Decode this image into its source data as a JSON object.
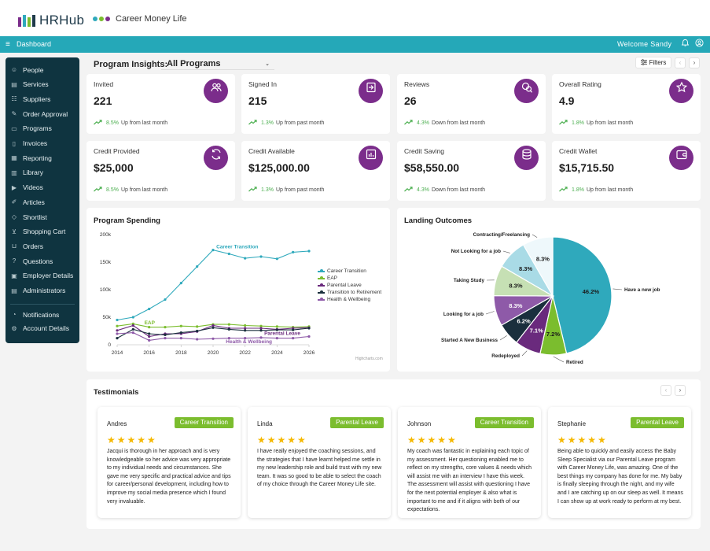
{
  "app": {
    "logo_text": "HRHub",
    "brand_text": "Career Money Life",
    "nav_title": "Dashboard",
    "welcome": "Welcome Sandy"
  },
  "sidebar": {
    "items": [
      {
        "label": "People",
        "icon": "people-icon"
      },
      {
        "label": "Services",
        "icon": "services-icon"
      },
      {
        "label": "Suppliers",
        "icon": "suppliers-icon"
      },
      {
        "label": "Order Approval",
        "icon": "order-approval-icon"
      },
      {
        "label": "Programs",
        "icon": "programs-icon"
      },
      {
        "label": "Invoices",
        "icon": "invoices-icon"
      },
      {
        "label": "Reporting",
        "icon": "reporting-icon"
      },
      {
        "label": "Library",
        "icon": "library-icon"
      },
      {
        "label": "Videos",
        "icon": "videos-icon"
      },
      {
        "label": "Articles",
        "icon": "articles-icon"
      },
      {
        "label": "Shortlist",
        "icon": "shortlist-icon"
      },
      {
        "label": "Shopping Cart",
        "icon": "shopping-cart-icon"
      },
      {
        "label": "Orders",
        "icon": "orders-icon"
      },
      {
        "label": "Questions",
        "icon": "questions-icon"
      },
      {
        "label": "Employer Details",
        "icon": "employer-details-icon"
      },
      {
        "label": "Administrators",
        "icon": "administrators-icon"
      }
    ],
    "bottom_items": [
      {
        "label": "Notifications",
        "icon": "bell-icon"
      },
      {
        "label": "Account Details",
        "icon": "gear-icon"
      }
    ]
  },
  "insights": {
    "title": "Program Insights:",
    "selected_program": "All Programs",
    "filters_label": "Filters"
  },
  "stats": [
    {
      "label": "Invited",
      "value": "221",
      "pct": "8.5%",
      "desc": "Up from last month",
      "icon": "users-icon"
    },
    {
      "label": "Signed In",
      "value": "215",
      "pct": "1.3%",
      "desc": "Up from past month",
      "icon": "sign-in-icon"
    },
    {
      "label": "Reviews",
      "value": "26",
      "pct": "4.3%",
      "desc": "Down from last month",
      "icon": "reviews-icon"
    },
    {
      "label": "Overall Rating",
      "value": "4.9",
      "pct": "1.8%",
      "desc": "Up from last month",
      "icon": "star-icon"
    },
    {
      "label": "Credit Provided",
      "value": "$25,000",
      "pct": "8.5%",
      "desc": "Up from last month",
      "icon": "refresh-icon"
    },
    {
      "label": "Credit Available",
      "value": "$125,000.00",
      "pct": "1.3%",
      "desc": "Up from past month",
      "icon": "chart-icon"
    },
    {
      "label": "Credit Saving",
      "value": "$58,550.00",
      "pct": "4.3%",
      "desc": "Down from last month",
      "icon": "coins-icon"
    },
    {
      "label": "Credit Wallet",
      "value": "$15,715.50",
      "pct": "1.8%",
      "desc": "Up from last month",
      "icon": "wallet-icon"
    }
  ],
  "spending": {
    "title": "Program Spending",
    "credit": "Highcharts.com"
  },
  "outcomes": {
    "title": "Landing Outcomes"
  },
  "testimonials": {
    "title": "Testimonials",
    "items": [
      {
        "name": "Andres",
        "tag": "Career Transition",
        "text": "Jacqui is thorough in her approach and is very knowledgeable so her advice was very appropriate to my individual needs and circumstances. She gave me very specific and practical advice and tips for career/personal development, including how to improve my social media presence which I found very invaluable."
      },
      {
        "name": "Linda",
        "tag": "Parental Leave",
        "text": "I have really enjoyed the coaching sessions, and the strategies that I have learnt helped me settle in my new leadership role and build trust with my new team. It was so good to be able to select the coach of my choice through the Career Money Life site."
      },
      {
        "name": "Johnson",
        "tag": "Career Transition",
        "text": "My coach was fantastic in explaining each topic of my assessment. Her questioning enabled me to reflect on my strengths, core values & needs which will assist me with an interview I have this week. The assessment will assist with questioning I have for the next potential employer & also what is important to me and if it aligns with both of our expectations."
      },
      {
        "name": "Stephanie",
        "tag": "Parental Leave",
        "text": "Being able to quickly and easily access the Baby Sleep Specialist via our Parental Leave program with Career Money Life, was amazing. One of the best things my company has done for me. My baby is finally sleeping through the night, and my wife and I are catching up on our sleep as well. It means I can show up at work ready to perform at my best."
      }
    ]
  },
  "chart_data": [
    {
      "type": "line",
      "title": "Program Spending",
      "x": [
        2014,
        2015,
        2016,
        2017,
        2018,
        2019,
        2020,
        2021,
        2022,
        2023,
        2024,
        2025,
        2026
      ],
      "xticks": [
        "2014",
        "2016",
        "2018",
        "2020",
        "2022",
        "2024",
        "2026"
      ],
      "yticks": [
        "0",
        "50k",
        "100k",
        "150k",
        "200k"
      ],
      "ylim": [
        0,
        200000
      ],
      "series": [
        {
          "name": "Career Transition",
          "color": "#2fa9bc",
          "values": [
            45000,
            50000,
            65000,
            82000,
            112000,
            142000,
            172000,
            165000,
            157000,
            160000,
            156000,
            168000,
            170000
          ]
        },
        {
          "name": "EAP",
          "color": "#7bbd2e",
          "values": [
            34000,
            38000,
            32000,
            32000,
            34000,
            33000,
            37000,
            37000,
            35000,
            34000,
            33000,
            32000,
            33000
          ]
        },
        {
          "name": "Parental Leave",
          "color": "#6a2a7d",
          "values": [
            26000,
            35000,
            15000,
            20000,
            20000,
            24000,
            35000,
            30000,
            30000,
            30000,
            28000,
            30000,
            31000
          ]
        },
        {
          "name": "Transition to Retirement",
          "color": "#1a2f3d",
          "values": [
            12000,
            28000,
            20000,
            18000,
            22000,
            25000,
            31000,
            28000,
            26000,
            26000,
            27000,
            27000,
            30000
          ]
        },
        {
          "name": "Health & Wellbeing",
          "color": "#8e5aa8",
          "values": [
            20000,
            22000,
            8000,
            12000,
            12000,
            10000,
            11000,
            12000,
            12000,
            13000,
            12000,
            12000,
            15000
          ]
        }
      ],
      "annotations": [
        "Career Transition",
        "EAP",
        "Parental Leave",
        "Health & Wellbeing"
      ]
    },
    {
      "type": "pie",
      "title": "Landing Outcomes",
      "slices": [
        {
          "label": "Have a new job",
          "value": 46.2,
          "color": "#2fa9bc",
          "text_color": "#1a1a1a"
        },
        {
          "label": "Retired",
          "value": 7.2,
          "color": "#7bbd2e",
          "text_color": "#1a1a1a"
        },
        {
          "label": "Redeployed",
          "value": 7.1,
          "color": "#6a2a7d",
          "text_color": "#ffffff"
        },
        {
          "label": "Started A New Business",
          "value": 6.2,
          "color": "#1a2f3d",
          "text_color": "#ffffff"
        },
        {
          "label": "Looking for a job",
          "value": 8.3,
          "color": "#8e5aa8",
          "text_color": "#ffffff"
        },
        {
          "label": "Taking Study",
          "value": 8.3,
          "color": "#c6e0b4",
          "text_color": "#1a1a1a"
        },
        {
          "label": "Not Looking for a job",
          "value": 8.3,
          "color": "#a9dbe6",
          "text_color": "#1a1a1a"
        },
        {
          "label": "Contracting/Freelancing",
          "value": 8.3,
          "color": "#eef8fb",
          "text_color": "#1a1a1a"
        }
      ]
    }
  ]
}
